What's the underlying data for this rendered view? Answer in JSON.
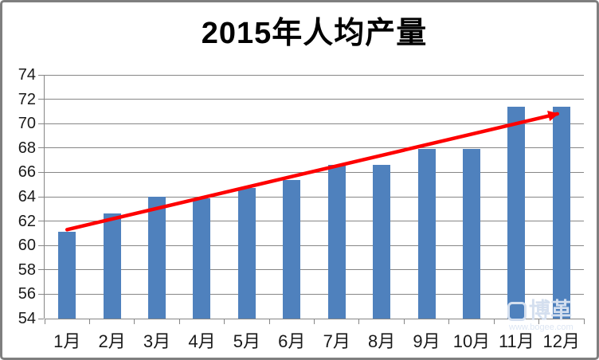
{
  "window": {
    "background": "#ffffff",
    "frame_color": "#7f7f7f"
  },
  "chart_data": {
    "type": "bar",
    "title": "2015年人均产量",
    "categories": [
      "1月",
      "2月",
      "3月",
      "4月",
      "5月",
      "6月",
      "7月",
      "8月",
      "9月",
      "10月",
      "11月",
      "12月"
    ],
    "values": [
      61.1,
      62.6,
      64.0,
      63.9,
      64.7,
      65.4,
      66.6,
      66.6,
      67.9,
      67.9,
      71.4,
      71.4
    ],
    "xlabel": "",
    "ylabel": "",
    "ylim": [
      54,
      74
    ],
    "yticks": [
      54,
      56,
      58,
      60,
      62,
      64,
      66,
      68,
      70,
      72,
      74
    ],
    "grid": true,
    "legend_position": "none",
    "bar_color": "#4F81BD",
    "gridline_color": "#868686",
    "trend_arrow": {
      "color": "#FE0000",
      "from": {
        "category": "1月",
        "value": 61.3
      },
      "to": {
        "category": "12月",
        "value": 70.8
      }
    }
  },
  "watermark": {
    "text": "博革",
    "subtext": "www.bogee.com"
  }
}
